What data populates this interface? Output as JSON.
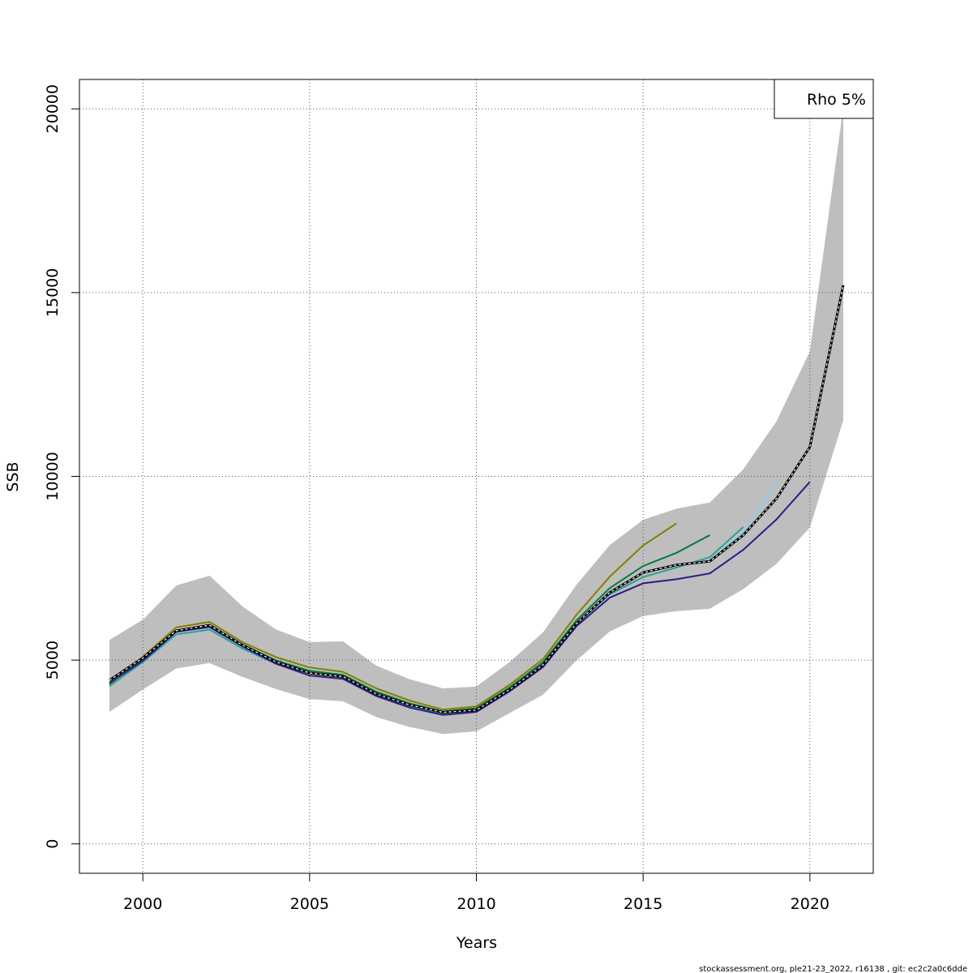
{
  "chart_data": {
    "type": "line",
    "title": "",
    "xlabel": "Years",
    "ylabel": "SSB",
    "xlim": [
      1998.1,
      2021.9
    ],
    "ylim": [
      -800,
      20800
    ],
    "xticks": [
      2000,
      2005,
      2010,
      2015,
      2020
    ],
    "yticks": [
      0,
      5000,
      10000,
      15000,
      20000
    ],
    "grid": true,
    "legend": {
      "position": "top-right",
      "text": "Rho 5%"
    },
    "footer": "stockassessment.org, ple21-23_2022, r16138 , git: ec2c2a0c6dde",
    "band": {
      "x": [
        1999,
        2000,
        2001,
        2002,
        2003,
        2004,
        2005,
        2006,
        2007,
        2008,
        2009,
        2010,
        2011,
        2012,
        2013,
        2014,
        2015,
        2016,
        2017,
        2018,
        2019,
        2020,
        2021
      ],
      "upper": [
        5550,
        6100,
        7030,
        7300,
        6450,
        5830,
        5490,
        5510,
        4850,
        4480,
        4230,
        4280,
        4950,
        5760,
        7050,
        8130,
        8820,
        9120,
        9290,
        10190,
        11500,
        13400,
        20030
      ],
      "lower": [
        3590,
        4200,
        4770,
        4920,
        4540,
        4210,
        3940,
        3880,
        3450,
        3180,
        2990,
        3060,
        3560,
        4060,
        4990,
        5780,
        6200,
        6330,
        6400,
        6930,
        7620,
        8610,
        11530
      ]
    },
    "series": [
      {
        "color": "#000000",
        "dashed": true,
        "x": [
          1999,
          2000,
          2001,
          2002,
          2003,
          2004,
          2005,
          2006,
          2007,
          2008,
          2009,
          2010,
          2011,
          2012,
          2013,
          2014,
          2015,
          2016,
          2017,
          2018,
          2019,
          2020,
          2021
        ],
        "values": [
          4450,
          5060,
          5800,
          5950,
          5400,
          4950,
          4650,
          4550,
          4080,
          3780,
          3580,
          3640,
          4200,
          4870,
          5990,
          6840,
          7380,
          7590,
          7690,
          8400,
          9400,
          10800,
          15200
        ]
      },
      {
        "color": "#808000",
        "x": [
          1999,
          2000,
          2001,
          2002,
          2003,
          2004,
          2005,
          2006,
          2007,
          2008,
          2009,
          2010,
          2011,
          2012,
          2013,
          2014,
          2015,
          2016
        ],
        "values": [
          4330,
          5090,
          5890,
          6040,
          5480,
          5080,
          4800,
          4680,
          4230,
          3900,
          3650,
          3740,
          4330,
          5030,
          6230,
          7270,
          8120,
          8720
        ]
      },
      {
        "color": "#007a3d",
        "x": [
          1999,
          2000,
          2001,
          2002,
          2003,
          2004,
          2005,
          2006,
          2007,
          2008,
          2009,
          2010,
          2011,
          2012,
          2013,
          2014,
          2015,
          2016,
          2017
        ],
        "values": [
          4380,
          5020,
          5800,
          5950,
          5420,
          4990,
          4710,
          4600,
          4140,
          3820,
          3600,
          3690,
          4260,
          4950,
          6080,
          6960,
          7560,
          7920,
          8400
        ]
      },
      {
        "color": "#2aa198",
        "x": [
          1999,
          2000,
          2001,
          2002,
          2003,
          2004,
          2005,
          2006,
          2007,
          2008,
          2009,
          2010,
          2011,
          2012,
          2013,
          2014,
          2015,
          2016,
          2017,
          2018
        ],
        "values": [
          4290,
          4950,
          5700,
          5830,
          5310,
          4900,
          4640,
          4540,
          4070,
          3760,
          3550,
          3630,
          4190,
          4860,
          5980,
          6790,
          7260,
          7520,
          7800,
          8620
        ]
      },
      {
        "color": "#87ceeb",
        "x": [
          2017,
          2018,
          2019
        ],
        "values": [
          7700,
          8480,
          9850
        ]
      },
      {
        "color": "#2e1a87",
        "x": [
          1999,
          2000,
          2001,
          2002,
          2003,
          2004,
          2005,
          2006,
          2007,
          2008,
          2009,
          2010,
          2011,
          2012,
          2013,
          2014,
          2015,
          2016,
          2017,
          2018,
          2019,
          2020
        ],
        "values": [
          4370,
          4980,
          5770,
          5900,
          5370,
          4900,
          4580,
          4490,
          4020,
          3710,
          3510,
          3590,
          4150,
          4810,
          5920,
          6700,
          7090,
          7200,
          7360,
          8000,
          8830,
          9850
        ]
      }
    ]
  }
}
